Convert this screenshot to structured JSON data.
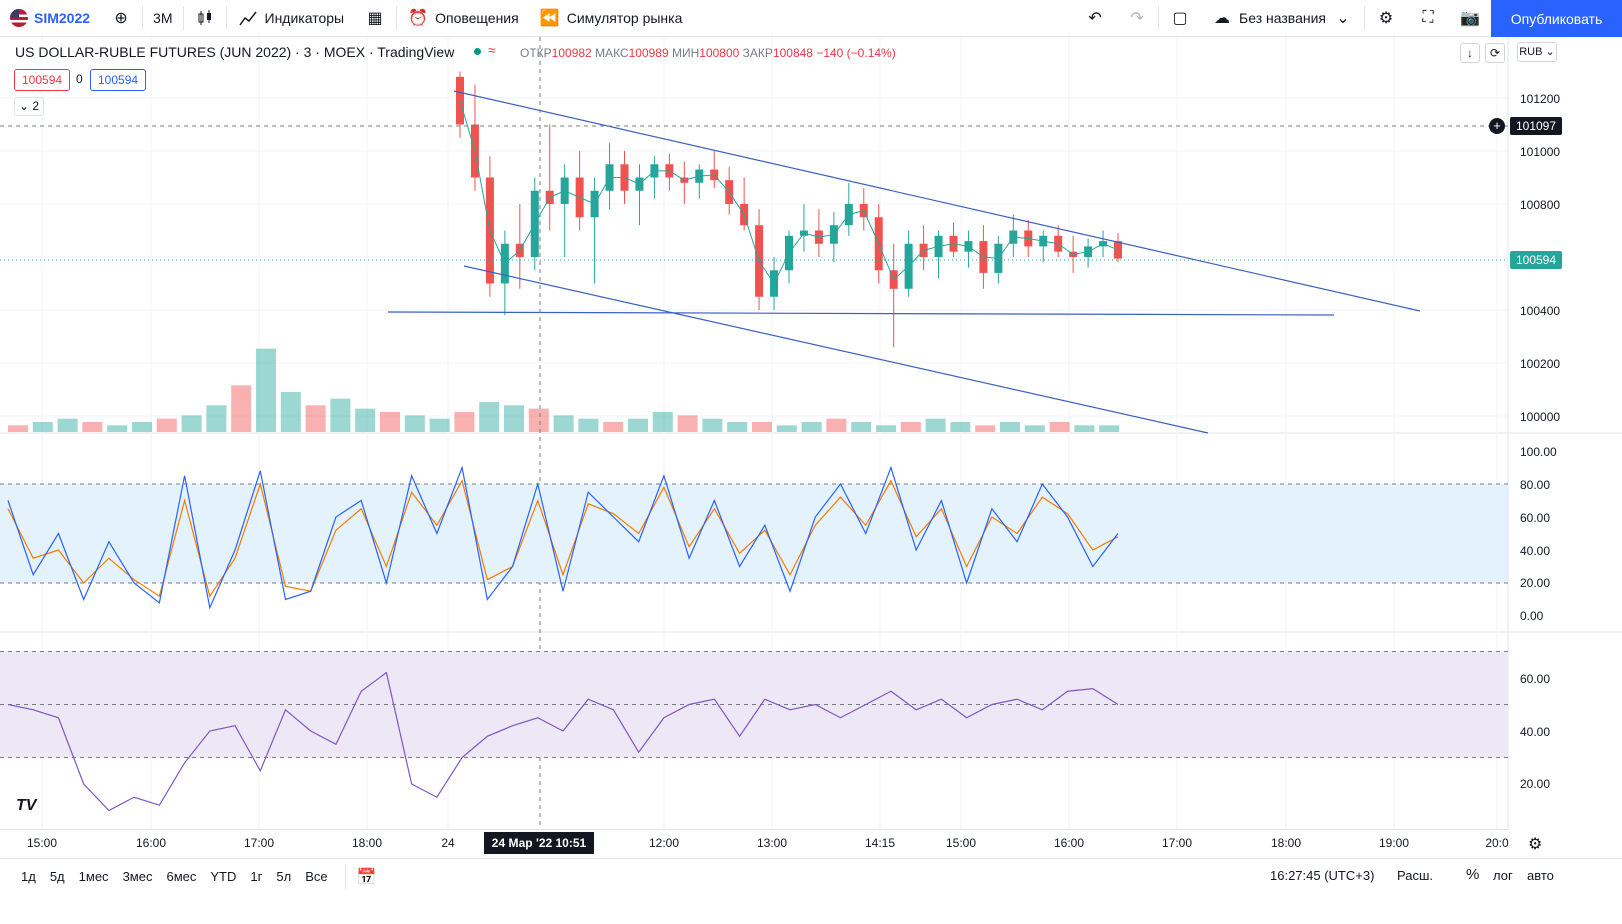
{
  "toolbar": {
    "symbol": "SIM2022",
    "interval": "3М",
    "indicators": "Индикаторы",
    "alerts": "Оповещения",
    "replay": "Симулятор рынка",
    "layout_name": "Без названия",
    "publish": "Опубликовать"
  },
  "legend": {
    "title": "US DOLLAR-RUBLE FUTURES (JUN 2022) · 3 · MOEX · TradingView",
    "open_label": "ОТКР",
    "open": "100982",
    "high_label": "МАКС",
    "high": "100989",
    "low_label": "МИН",
    "low": "100800",
    "close_label": "ЗАКР",
    "close": "100848",
    "change": "−140 (−0.14%)",
    "bid": "100594",
    "spread": "0",
    "ask": "100594",
    "collapse": "2",
    "currency": "RUB"
  },
  "price_axis": {
    "ticks": [
      "101200",
      "101000",
      "100800",
      "100400",
      "100200",
      "100000"
    ],
    "crosshair_price": "101097",
    "last_price": "100594",
    "stoch_ticks": [
      "100.00",
      "80.00",
      "60.00",
      "40.00",
      "20.00",
      "0.00"
    ],
    "rsi_ticks": [
      "60.00",
      "40.00",
      "20.00"
    ]
  },
  "time_axis": {
    "labels": [
      "15:00",
      "16:00",
      "17:00",
      "18:00",
      "24",
      "12:00",
      "13:00",
      "14:15",
      "15:00",
      "16:00",
      "17:00",
      "18:00",
      "19:00",
      "20:0"
    ],
    "crosshair_time": "24 Мар '22   10:51"
  },
  "bottombar": {
    "ranges": [
      "1д",
      "5д",
      "1мес",
      "3мес",
      "6мес",
      "YTD",
      "1г",
      "5л",
      "Все"
    ],
    "clock": "16:27:45 (UTC+3)",
    "ext": "Расш.",
    "pct": "%",
    "log": "лог",
    "auto": "авто"
  },
  "colors": {
    "up": "#26a69a",
    "down": "#ef5350",
    "line": "#3a60c0",
    "stoch_k": "#2962ff",
    "stoch_d": "#f57c00",
    "rsi": "#7e57c2",
    "stoch_band": "#e3f2fd",
    "rsi_band": "#ede7f6"
  },
  "chart_data": [
    {
      "type": "candlestick",
      "title": "US DOLLAR-RUBLE FUTURES (JUN 2022)",
      "ylim": [
        99950,
        101300
      ],
      "series": [
        {
          "name": "candles",
          "values": [
            [
              101280,
              101300,
              101050,
              101100
            ],
            [
              101100,
              101250,
              100850,
              100900
            ],
            [
              100900,
              100980,
              100450,
              100500
            ],
            [
              100500,
              100700,
              100380,
              100650
            ],
            [
              100650,
              100800,
              100480,
              100600
            ],
            [
              100600,
              100900,
              100550,
              100850
            ],
            [
              100850,
              101100,
              100700,
              100800
            ],
            [
              100800,
              100950,
              100600,
              100900
            ],
            [
              100900,
              101000,
              100700,
              100750
            ],
            [
              100750,
              100900,
              100500,
              100850
            ],
            [
              100850,
              101030,
              100780,
              100950
            ],
            [
              100950,
              101000,
              100800,
              100850
            ],
            [
              100850,
              100950,
              100720,
              100900
            ],
            [
              100900,
              100980,
              100820,
              100950
            ],
            [
              100950,
              100990,
              100850,
              100900
            ],
            [
              100900,
              100960,
              100800,
              100880
            ],
            [
              100880,
              100950,
              100820,
              100930
            ],
            [
              100930,
              101000,
              100860,
              100890
            ],
            [
              100890,
              100940,
              100760,
              100800
            ],
            [
              100800,
              100900,
              100700,
              100720
            ],
            [
              100720,
              100780,
              100400,
              100450
            ],
            [
              100450,
              100600,
              100400,
              100550
            ],
            [
              100550,
              100700,
              100500,
              100680
            ],
            [
              100680,
              100800,
              100620,
              100700
            ],
            [
              100700,
              100780,
              100600,
              100650
            ],
            [
              100650,
              100770,
              100580,
              100720
            ],
            [
              100720,
              100880,
              100680,
              100800
            ],
            [
              100800,
              100860,
              100700,
              100750
            ],
            [
              100750,
              100800,
              100500,
              100550
            ],
            [
              100550,
              100650,
              100260,
              100480
            ],
            [
              100480,
              100700,
              100450,
              100650
            ],
            [
              100650,
              100720,
              100550,
              100600
            ],
            [
              100600,
              100700,
              100520,
              100680
            ],
            [
              100680,
              100730,
              100600,
              100620
            ],
            [
              100620,
              100700,
              100560,
              100660
            ],
            [
              100660,
              100720,
              100480,
              100540
            ],
            [
              100540,
              100680,
              100500,
              100650
            ],
            [
              100650,
              100760,
              100600,
              100700
            ],
            [
              100700,
              100740,
              100600,
              100640
            ],
            [
              100640,
              100700,
              100580,
              100680
            ],
            [
              100680,
              100720,
              100600,
              100620
            ],
            [
              100620,
              100680,
              100540,
              100600
            ],
            [
              100600,
              100670,
              100560,
              100640
            ],
            [
              100640,
              100700,
              100600,
              100660
            ],
            [
              100660,
              100690,
              100580,
              100594
            ]
          ]
        }
      ]
    },
    {
      "type": "bar",
      "title": "Volume",
      "values": [
        2,
        3,
        4,
        3,
        2,
        3,
        4,
        5,
        8,
        14,
        25,
        12,
        8,
        10,
        7,
        6,
        5,
        4,
        6,
        9,
        8,
        7,
        5,
        4,
        3,
        4,
        6,
        5,
        4,
        3,
        3,
        2,
        3,
        4,
        3,
        2,
        3,
        4,
        3,
        2,
        3,
        2,
        3,
        2,
        2
      ],
      "ylim": [
        0,
        30
      ]
    },
    {
      "type": "line",
      "title": "Stochastic",
      "ylim": [
        0,
        100
      ],
      "series": [
        {
          "name": "%K",
          "values": [
            70,
            25,
            50,
            10,
            45,
            20,
            8,
            85,
            5,
            40,
            88,
            10,
            15,
            60,
            70,
            20,
            85,
            50,
            90,
            10,
            30,
            80,
            15,
            75,
            60,
            45,
            85,
            35,
            70,
            30,
            55,
            15,
            60,
            80,
            50,
            90,
            40,
            70,
            20,
            65,
            45,
            80,
            60,
            30,
            50
          ]
        },
        {
          "name": "%D",
          "values": [
            65,
            35,
            40,
            20,
            35,
            22,
            12,
            70,
            12,
            35,
            80,
            18,
            15,
            52,
            65,
            30,
            75,
            55,
            82,
            22,
            30,
            70,
            25,
            68,
            62,
            50,
            78,
            42,
            65,
            38,
            52,
            25,
            55,
            72,
            55,
            82,
            48,
            65,
            30,
            60,
            50,
            72,
            62,
            40,
            48
          ]
        }
      ]
    },
    {
      "type": "line",
      "title": "RSI",
      "ylim": [
        10,
        75
      ],
      "series": [
        {
          "name": "RSI",
          "values": [
            50,
            48,
            45,
            20,
            10,
            15,
            12,
            28,
            40,
            42,
            25,
            48,
            40,
            35,
            55,
            62,
            20,
            15,
            30,
            38,
            42,
            45,
            40,
            52,
            48,
            32,
            45,
            50,
            52,
            38,
            52,
            48,
            50,
            45,
            50,
            55,
            48,
            52,
            45,
            50,
            52,
            48,
            55,
            56,
            50
          ]
        }
      ]
    }
  ]
}
